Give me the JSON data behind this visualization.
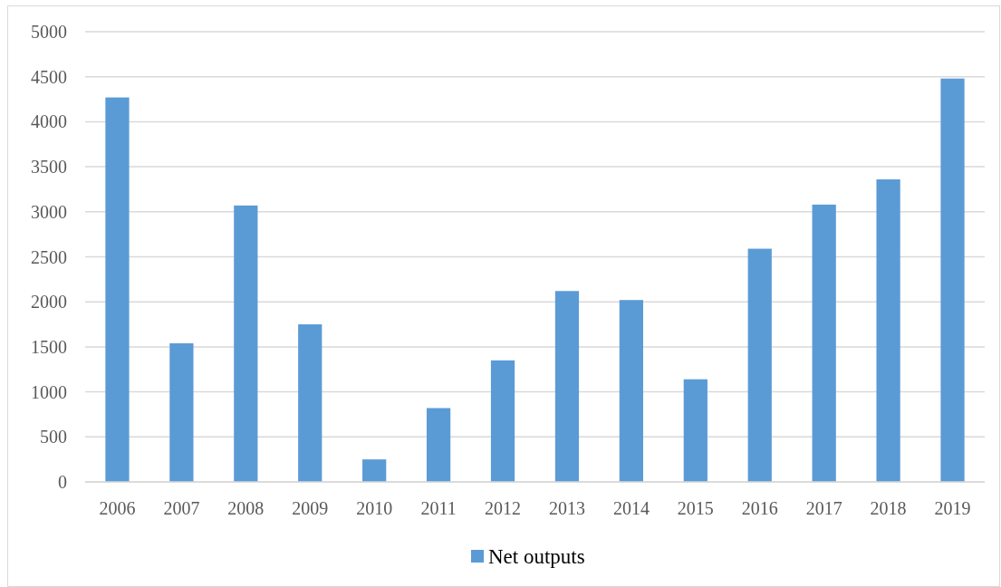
{
  "chart_data": {
    "type": "bar",
    "categories": [
      "2006",
      "2007",
      "2008",
      "2009",
      "2010",
      "2011",
      "2012",
      "2013",
      "2014",
      "2015",
      "2016",
      "2017",
      "2018",
      "2019"
    ],
    "series": [
      {
        "name": "Net outputs",
        "color": "#5b9bd5",
        "values": [
          4270,
          1540,
          3070,
          1750,
          250,
          820,
          1350,
          2120,
          2020,
          1140,
          2590,
          3080,
          3360,
          4480
        ]
      }
    ],
    "ylim": [
      0,
      5000
    ],
    "yticks": [
      0,
      500,
      1000,
      1500,
      2000,
      2500,
      3000,
      3500,
      4000,
      4500,
      5000
    ],
    "grid": "y",
    "legend": "bottom"
  }
}
